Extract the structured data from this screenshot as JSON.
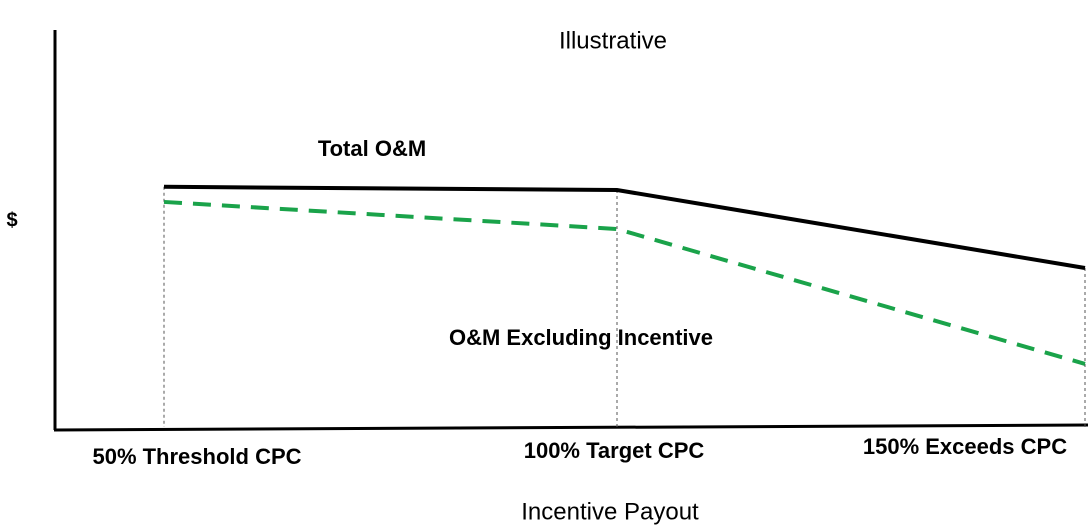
{
  "chart_data": {
    "type": "line",
    "title": "Illustrative",
    "ylabel": "$",
    "xlabel": "Incentive Payout",
    "categories": [
      "50% Threshold CPC",
      "100% Target CPC",
      "150% Exceeds CPC"
    ],
    "series": [
      {
        "name": "Total O&M",
        "color": "#000000",
        "dashed": false,
        "values": [
          60.6,
          59.8,
          40.2
        ]
      },
      {
        "name": "O&M Excluding Incentive",
        "color": "#1aa34a",
        "dashed": true,
        "values": [
          56.8,
          50,
          16.1
        ]
      }
    ],
    "ylim": [
      0,
      100
    ]
  }
}
